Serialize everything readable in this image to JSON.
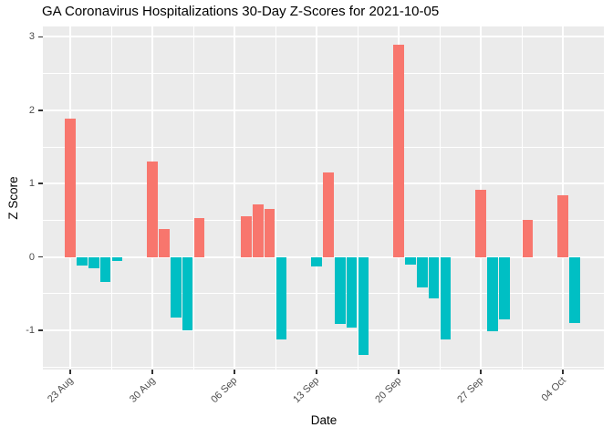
{
  "title": "GA Coronavirus Hospitalizations 30-Day Z-Scores for 2021-10-05",
  "colors": {
    "positive": "#F8766D",
    "negative": "#00BFC4",
    "panel_background": "#EBEBEB",
    "gridline": "#FFFFFF",
    "tick_label": "#4D4D4D",
    "tick_mark": "#333333",
    "axis_title": "#000000"
  },
  "chart_data": {
    "type": "bar",
    "title": "GA Coronavirus Hospitalizations 30-Day Z-Scores for 2021-10-05",
    "xlabel": "Date",
    "ylabel": "Z Score",
    "ylim": [
      -1.53,
      3.14
    ],
    "grid": true,
    "legend_position": "none",
    "x_ticks": [
      {
        "day": 0,
        "label": "23 Aug"
      },
      {
        "day": 7,
        "label": "30 Aug"
      },
      {
        "day": 14,
        "label": "06 Sep"
      },
      {
        "day": 21,
        "label": "13 Sep"
      },
      {
        "day": 28,
        "label": "20 Sep"
      },
      {
        "day": 35,
        "label": "27 Sep"
      },
      {
        "day": 42,
        "label": "04 Oct"
      }
    ],
    "y_ticks": [
      {
        "value": -1,
        "label": "-1"
      },
      {
        "value": 0,
        "label": "0"
      },
      {
        "value": 1,
        "label": "1"
      },
      {
        "value": 2,
        "label": "2"
      },
      {
        "value": 3,
        "label": "3"
      }
    ],
    "bars": [
      {
        "date": "23 Aug",
        "day": 0,
        "z": 1.89
      },
      {
        "date": "24 Aug",
        "day": 1,
        "z": -0.12
      },
      {
        "date": "25 Aug",
        "day": 2,
        "z": -0.15
      },
      {
        "date": "26 Aug",
        "day": 3,
        "z": -0.34
      },
      {
        "date": "27 Aug",
        "day": 4,
        "z": -0.06
      },
      {
        "date": "30 Aug",
        "day": 7,
        "z": 1.3
      },
      {
        "date": "31 Aug",
        "day": 8,
        "z": 0.38
      },
      {
        "date": "01 Sep",
        "day": 9,
        "z": -0.83
      },
      {
        "date": "02 Sep",
        "day": 10,
        "z": -1.0
      },
      {
        "date": "03 Sep",
        "day": 11,
        "z": 0.53
      },
      {
        "date": "07 Sep",
        "day": 15,
        "z": 0.56
      },
      {
        "date": "08 Sep",
        "day": 16,
        "z": 0.72
      },
      {
        "date": "09 Sep",
        "day": 17,
        "z": 0.65
      },
      {
        "date": "10 Sep",
        "day": 18,
        "z": -1.12
      },
      {
        "date": "13 Sep",
        "day": 21,
        "z": -0.13
      },
      {
        "date": "14 Sep",
        "day": 22,
        "z": 1.15
      },
      {
        "date": "15 Sep",
        "day": 23,
        "z": -0.91
      },
      {
        "date": "16 Sep",
        "day": 24,
        "z": -0.96
      },
      {
        "date": "17 Sep",
        "day": 25,
        "z": -1.34
      },
      {
        "date": "20 Sep",
        "day": 28,
        "z": 2.89
      },
      {
        "date": "21 Sep",
        "day": 29,
        "z": -0.1
      },
      {
        "date": "22 Sep",
        "day": 30,
        "z": -0.42
      },
      {
        "date": "23 Sep",
        "day": 31,
        "z": -0.57
      },
      {
        "date": "24 Sep",
        "day": 32,
        "z": -1.12
      },
      {
        "date": "27 Sep",
        "day": 35,
        "z": 0.92
      },
      {
        "date": "28 Sep",
        "day": 36,
        "z": -1.01
      },
      {
        "date": "29 Sep",
        "day": 37,
        "z": -0.85
      },
      {
        "date": "01 Oct",
        "day": 39,
        "z": 0.5
      },
      {
        "date": "04 Oct",
        "day": 42,
        "z": 0.84
      },
      {
        "date": "05 Oct",
        "day": 43,
        "z": -0.9
      }
    ]
  }
}
